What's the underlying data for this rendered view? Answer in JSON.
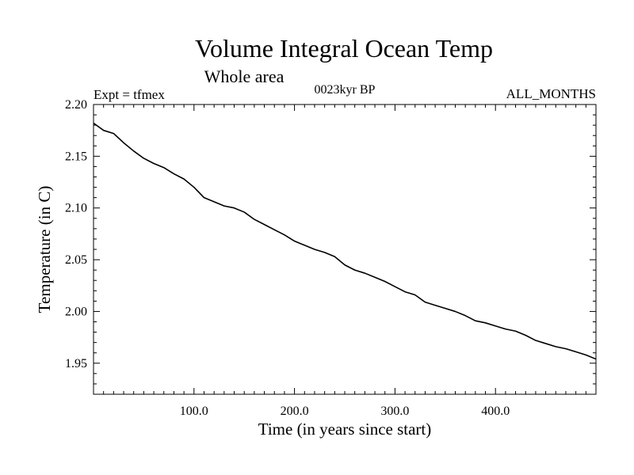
{
  "chart_data": {
    "type": "line",
    "title": "Volume Integral Ocean Temp",
    "subtitle": "Whole area",
    "annotations": {
      "left": "Expt = tfmex",
      "center": "0023kyr BP",
      "right": "ALL_MONTHS"
    },
    "xlabel": "Time (in years since start)",
    "ylabel": "Temperature (in C)",
    "xlim": [
      0,
      500
    ],
    "ylim": [
      1.92,
      2.2
    ],
    "x_tick_labels": [
      {
        "value": 100,
        "label": "100.0"
      },
      {
        "value": 200,
        "label": "200.0"
      },
      {
        "value": 300,
        "label": "300.0"
      },
      {
        "value": 400,
        "label": "400.0"
      }
    ],
    "y_tick_labels": [
      {
        "value": 1.95,
        "label": "1.95"
      },
      {
        "value": 2.0,
        "label": "2.00"
      },
      {
        "value": 2.05,
        "label": "2.05"
      },
      {
        "value": 2.1,
        "label": "2.10"
      },
      {
        "value": 2.15,
        "label": "2.15"
      },
      {
        "value": 2.2,
        "label": "2.20"
      }
    ],
    "grid": false,
    "series": [
      {
        "x": [
          0,
          10,
          20,
          30,
          40,
          50,
          60,
          70,
          80,
          90,
          100,
          110,
          120,
          130,
          140,
          150,
          160,
          170,
          180,
          190,
          200,
          210,
          220,
          230,
          240,
          250,
          260,
          270,
          280,
          290,
          300,
          310,
          320,
          330,
          340,
          350,
          360,
          370,
          380,
          390,
          400,
          410,
          420,
          430,
          440,
          450,
          460,
          470,
          480,
          490,
          500
        ],
        "values": [
          2.182,
          2.175,
          2.172,
          2.163,
          2.155,
          2.148,
          2.143,
          2.139,
          2.133,
          2.128,
          2.12,
          2.11,
          2.106,
          2.102,
          2.1,
          2.096,
          2.089,
          2.084,
          2.079,
          2.074,
          2.068,
          2.064,
          2.06,
          2.057,
          2.053,
          2.045,
          2.04,
          2.037,
          2.033,
          2.029,
          2.024,
          2.019,
          2.016,
          2.009,
          2.006,
          2.003,
          2.0,
          1.996,
          1.991,
          1.989,
          1.986,
          1.983,
          1.981,
          1.977,
          1.972,
          1.969,
          1.966,
          1.964,
          1.961,
          1.958,
          1.954
        ]
      }
    ]
  }
}
